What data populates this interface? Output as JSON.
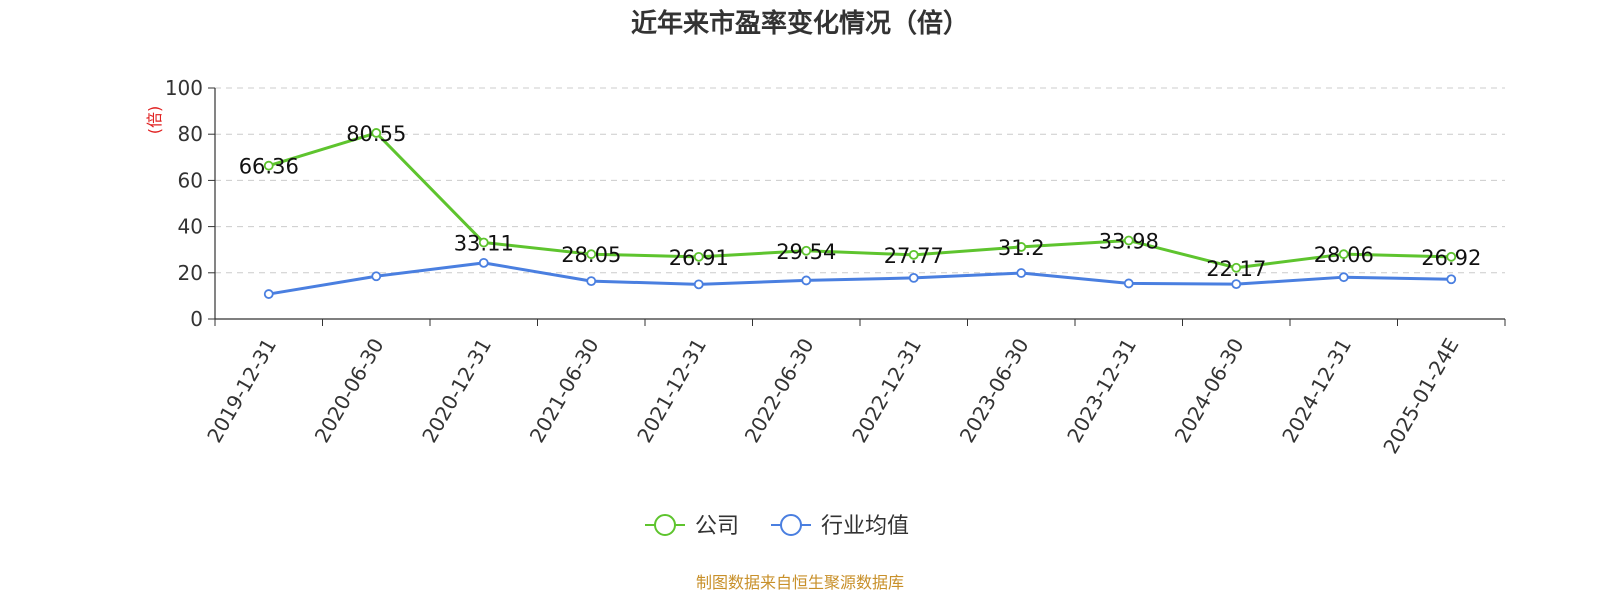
{
  "chart_data": {
    "type": "line",
    "title": "近年来市盈率变化情况（倍）",
    "ylabel": "(倍)",
    "ylim": [
      0,
      100
    ],
    "yticks": [
      0,
      20,
      40,
      60,
      80,
      100
    ],
    "grid": true,
    "legend_position": "bottom",
    "categories": [
      "2019-12-31",
      "2020-06-30",
      "2020-12-31",
      "2021-06-30",
      "2021-12-31",
      "2022-06-30",
      "2022-12-31",
      "2023-06-30",
      "2023-12-31",
      "2024-06-30",
      "2024-12-31",
      "2025-01-24E"
    ],
    "series": [
      {
        "name": "公司",
        "color": "#5ec42e",
        "show_labels": true,
        "values": [
          66.36,
          80.55,
          33.11,
          28.05,
          26.91,
          29.54,
          27.77,
          31.2,
          33.98,
          22.17,
          28.06,
          26.92
        ],
        "labels": [
          "66.36",
          "80.55",
          "33.11",
          "28.05",
          "26.91",
          "29.54",
          "27.77",
          "31.2",
          "33.98",
          "22.17",
          "28.06",
          "26.92"
        ]
      },
      {
        "name": "行业均值",
        "color": "#4a7fe0",
        "show_labels": false,
        "values": [
          10.8,
          18.5,
          24.3,
          16.4,
          15.0,
          16.7,
          17.8,
          19.9,
          15.4,
          15.1,
          18.1,
          17.2
        ]
      }
    ]
  },
  "colors": {
    "ylabel": "#e02020",
    "source": "#c8902a",
    "grid": "#cccccc",
    "axis": "#333333"
  },
  "source_text": "制图数据来自恒生聚源数据库"
}
